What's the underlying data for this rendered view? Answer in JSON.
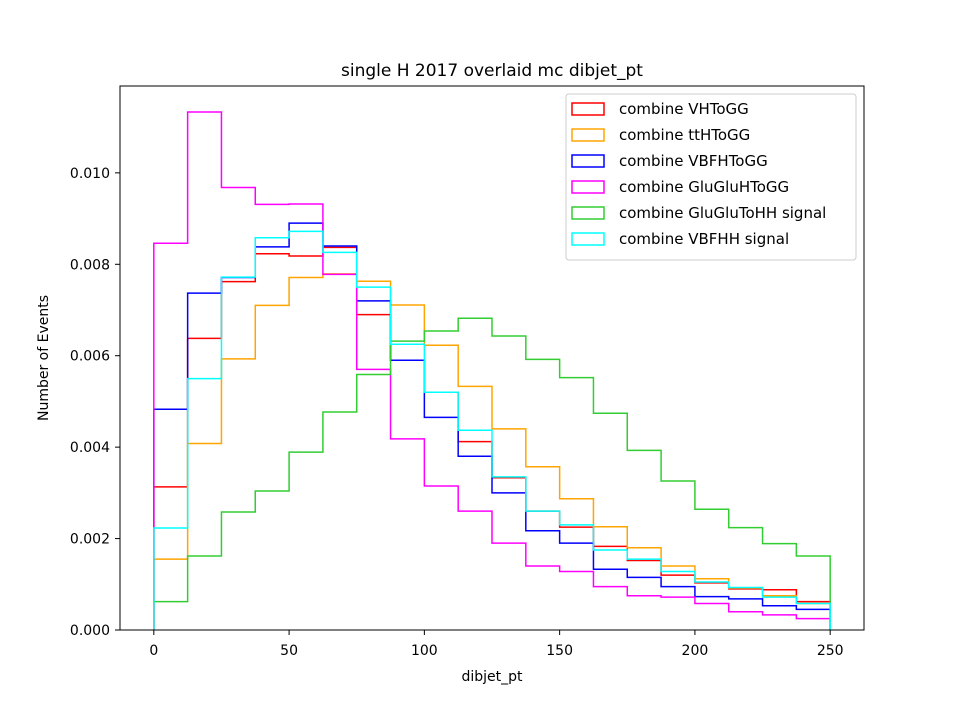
{
  "chart_data": {
    "type": "histogram-step",
    "title": "single H 2017 overlaid mc dibjet_pt",
    "xlabel": "dibjet_pt",
    "ylabel": "Number of Events",
    "xlim": [
      -12.5,
      262.5
    ],
    "ylim": [
      0,
      0.0119
    ],
    "xticks": [
      0,
      50,
      100,
      150,
      200,
      250
    ],
    "yticks": [
      0.0,
      0.002,
      0.004,
      0.006,
      0.008,
      0.01
    ],
    "ytick_labels": [
      "0.000",
      "0.002",
      "0.004",
      "0.006",
      "0.008",
      "0.010"
    ],
    "bin_edges": [
      0,
      12.5,
      25,
      37.5,
      50,
      62.5,
      75,
      87.5,
      100,
      112.5,
      125,
      137.5,
      150,
      162.5,
      175,
      187.5,
      200,
      212.5,
      225,
      237.5,
      250
    ],
    "legend_position": "upper right",
    "grid": false,
    "series": [
      {
        "name": "combine VHToGG",
        "color": "#ff0000",
        "values": [
          0.00313,
          0.00638,
          0.00762,
          0.00823,
          0.00818,
          0.00837,
          0.0069,
          0.0059,
          0.0052,
          0.00412,
          0.00333,
          0.0026,
          0.00225,
          0.00183,
          0.00152,
          0.0012,
          0.00103,
          0.0009,
          0.00088,
          0.00062
        ]
      },
      {
        "name": "combine ttHToGG",
        "color": "#ffa500",
        "values": [
          0.00155,
          0.00408,
          0.00593,
          0.0071,
          0.00771,
          0.00779,
          0.00763,
          0.00711,
          0.00623,
          0.00533,
          0.0044,
          0.00357,
          0.00287,
          0.00226,
          0.0018,
          0.0014,
          0.00112,
          0.00092,
          0.00075,
          0.00058
        ]
      },
      {
        "name": "combine VBFHToGG",
        "color": "#0000ff",
        "values": [
          0.00483,
          0.00737,
          0.00771,
          0.00838,
          0.0089,
          0.0084,
          0.0072,
          0.0059,
          0.00465,
          0.0038,
          0.003,
          0.00217,
          0.0019,
          0.00133,
          0.00115,
          0.00095,
          0.00073,
          0.00068,
          0.00053,
          0.00045
        ]
      },
      {
        "name": "combine GluGluHToGG",
        "color": "#ff00ff",
        "values": [
          0.00846,
          0.01133,
          0.00968,
          0.00931,
          0.00932,
          0.00778,
          0.0057,
          0.00418,
          0.00315,
          0.0026,
          0.0019,
          0.0014,
          0.00128,
          0.00095,
          0.00075,
          0.00072,
          0.00058,
          0.0004,
          0.00033,
          0.00025
        ]
      },
      {
        "name": "combine GluGluToHH signal",
        "color": "#32cd32",
        "values": [
          0.00062,
          0.00162,
          0.00258,
          0.00304,
          0.00389,
          0.00477,
          0.00559,
          0.00632,
          0.00654,
          0.00682,
          0.00643,
          0.00592,
          0.00552,
          0.00474,
          0.00393,
          0.00326,
          0.00264,
          0.00224,
          0.00189,
          0.00162
        ]
      },
      {
        "name": "combine VBFHH signal",
        "color": "#00ffff",
        "values": [
          0.00223,
          0.0055,
          0.00772,
          0.00858,
          0.00872,
          0.00826,
          0.0075,
          0.00625,
          0.0052,
          0.00437,
          0.00335,
          0.0026,
          0.0023,
          0.00175,
          0.00155,
          0.00128,
          0.00105,
          0.00093,
          0.00072,
          0.00058
        ]
      }
    ]
  }
}
